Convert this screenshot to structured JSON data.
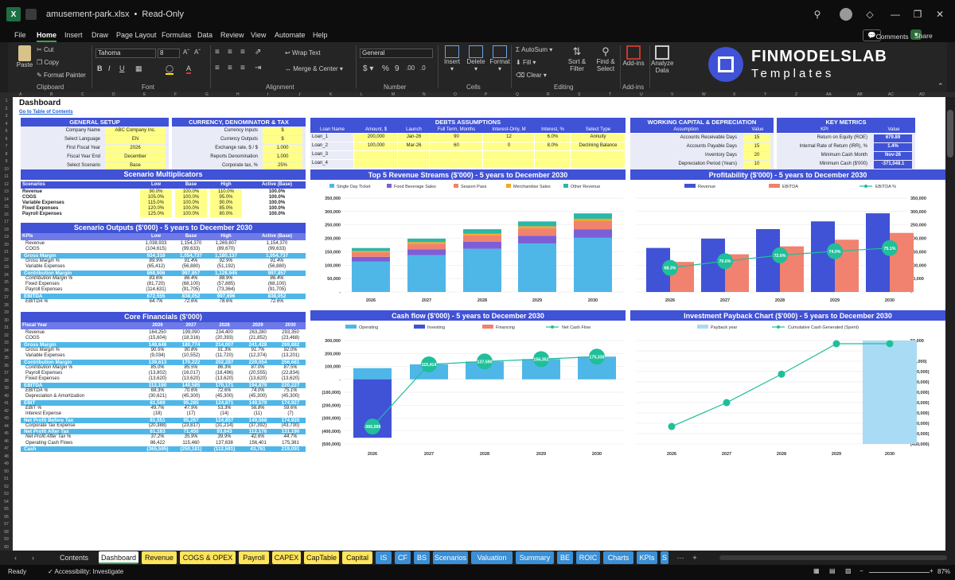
{
  "window": {
    "filename": "amusement-park.xlsx",
    "mode": "Read-Only"
  },
  "menu": [
    "File",
    "Home",
    "Insert",
    "Draw",
    "Page Layout",
    "Formulas",
    "Data",
    "Review",
    "View",
    "Automate",
    "Help"
  ],
  "comments_label": "Comments",
  "share_label": "Share",
  "ribbon": {
    "paste": "Paste",
    "cut": "Cut",
    "copy": "Copy",
    "format_painter": "Format Painter",
    "clipboard": "Clipboard",
    "font_name": "Tahoma",
    "font_size": "8",
    "font": "Font",
    "wrap_text": "Wrap Text",
    "merge_center": "Merge & Center",
    "alignment": "Alignment",
    "number_format": "General",
    "number": "Number",
    "insert": "Insert",
    "delete": "Delete",
    "format": "Format",
    "cells": "Cells",
    "autosum": "AutoSum",
    "fill": "Fill",
    "clear": "Clear",
    "sort_filter": "Sort & Filter",
    "find_select": "Find & Select",
    "editing": "Editing",
    "addins": "Add-ins",
    "addins_grp": "Add-ins",
    "analyze": "Analyze Data"
  },
  "brand": {
    "name": "FINMODELSLAB",
    "sub": "Templates"
  },
  "dash": {
    "title": "Dashboard",
    "link": "Go to Table of Contents"
  },
  "general": {
    "title": "GENERAL SETUP",
    "rows": [
      [
        "Company Name",
        "ABC Company Inc."
      ],
      [
        "Select Language",
        "EN"
      ],
      [
        "First Fiscal Year",
        "2026"
      ],
      [
        "Fiscal Year End",
        "December"
      ],
      [
        "Select Scenario",
        "Base"
      ]
    ]
  },
  "currency": {
    "title": "CURRENCY, DENOMINATOR & TAX",
    "rows": [
      [
        "Currency Inputs",
        "$"
      ],
      [
        "Currency Outputs",
        "$"
      ],
      [
        "Exchange rate, $ / $",
        "1.000"
      ],
      [
        "Reports Denomination",
        "1,000"
      ],
      [
        "Corporate tax, %",
        "25%"
      ]
    ]
  },
  "debts": {
    "title": "DEBTS ASSUMPTIONS",
    "cols": [
      "Loan Name",
      "Amount, $",
      "Launch",
      "Full Term, Months",
      "Interest-Only, M",
      "Interest, %",
      "Select Type"
    ],
    "rows": [
      [
        "Loan_1",
        "200,000",
        "Jan-26",
        "90",
        "12",
        "6.0%",
        "Annuity"
      ],
      [
        "Loan_2",
        "100,000",
        "Mar-26",
        "60",
        "0",
        "8.0%",
        "Declining Balance"
      ],
      [
        "Loan_3",
        "",
        "",
        "",
        "",
        "",
        ""
      ],
      [
        "Loan_4",
        "",
        "",
        "",
        "",
        "",
        ""
      ]
    ]
  },
  "wc": {
    "title": "WORKING CAPITAL & DEPRECIATION",
    "cols": [
      "Assumption",
      "Value"
    ],
    "rows": [
      [
        "Accounts Receivable Days",
        "15"
      ],
      [
        "Accounts Payable Days",
        "15"
      ],
      [
        "Inventory Days",
        "20"
      ],
      [
        "Depreciation Period (Years)",
        "10"
      ]
    ]
  },
  "kpi": {
    "title": "KEY METRICS",
    "cols": [
      "KPI",
      "Value"
    ],
    "rows": [
      [
        "Return on Equity (ROE)",
        "679.89"
      ],
      [
        "Internal Rate of Return (IRR), %",
        "1.4%"
      ],
      [
        "Minimum Cash Month",
        "Nov-26"
      ],
      [
        "Minimum Cash ($'000)",
        "-371,048.1"
      ]
    ]
  },
  "multipliers": {
    "title": "Scenario Multiplicators",
    "cols": [
      "Scenarios",
      "Low",
      "Base",
      "High",
      "Active (Base)"
    ],
    "rows": [
      [
        "Revenue",
        "90.0%",
        "100.0%",
        "110.0%",
        "100.0%"
      ],
      [
        "COGS",
        "105.0%",
        "100.0%",
        "95.0%",
        "100.0%"
      ],
      [
        "Variable Expenses",
        "115.0%",
        "100.0%",
        "90.0%",
        "100.0%"
      ],
      [
        "Fixed Expenses",
        "120.0%",
        "100.0%",
        "85.0%",
        "100.0%"
      ],
      [
        "Payroll Expenses",
        "125.0%",
        "100.0%",
        "80.0%",
        "100.0%"
      ]
    ]
  },
  "outputs": {
    "title": "Scenario Outputs ($'000) - 5 years to December 2030",
    "cols": [
      "KPIs",
      "Low",
      "Base",
      "High",
      "Active (Base)"
    ],
    "rows": [
      [
        "Revenue",
        "1,038,933",
        "1,154,370",
        "1,269,807",
        "1,154,370",
        "n"
      ],
      [
        "COGS",
        "(104,615)",
        "(99,633)",
        "(89,670)",
        "(99,633)",
        "n"
      ],
      [
        "Gross Margin",
        "934,318",
        "1,054,737",
        "1,180,137",
        "1,054,737",
        "b"
      ],
      [
        "Gross Margin %",
        "89.9%",
        "91.4%",
        "92.9%",
        "91.4%",
        "i"
      ],
      [
        "Variable Expenses",
        "(65,412)",
        "(56,880)",
        "(51,192)",
        "(56,880)",
        "n"
      ],
      [
        "Contribution Margin",
        "868,906",
        "997,857",
        "1,128,945",
        "997,857",
        "b"
      ],
      [
        "Contribution Margin %",
        "83.6%",
        "86.4%",
        "88.9%",
        "86.4%",
        "i"
      ],
      [
        "Fixed Expenses",
        "(81,720)",
        "(68,100)",
        "(57,885)",
        "(68,100)",
        "n"
      ],
      [
        "Payroll Expenses",
        "(114,631)",
        "(91,705)",
        "(73,364)",
        "(91,705)",
        "n"
      ],
      [
        "EBITDA",
        "672,555",
        "838,052",
        "997,696",
        "838,052",
        "b"
      ],
      [
        "EBITDA %",
        "64.7%",
        "72.6%",
        "78.6%",
        "72.6%",
        "i"
      ]
    ]
  },
  "core": {
    "title": "Core Financials ($'000)",
    "cols": [
      "Fiscal Year",
      "2026",
      "2027",
      "2028",
      "2029",
      "2030"
    ],
    "rows": [
      [
        "Revenue",
        "164,250",
        "199,090",
        "234,400",
        "263,280",
        "293,350",
        "n"
      ],
      [
        "COGS",
        "(15,604)",
        "(18,316)",
        "(20,393)",
        "(21,852)",
        "(23,468)",
        "n"
      ],
      [
        "Gross Margin",
        "148,646",
        "180,774",
        "214,007",
        "241,428",
        "269,882",
        "b"
      ],
      [
        "Gross Margin %",
        "90.5%",
        "90.8%",
        "91.3%",
        "91.7%",
        "92.0%",
        "i"
      ],
      [
        "Variable Expenses",
        "(9,034)",
        "(10,552)",
        "(11,720)",
        "(12,374)",
        "(13,201)",
        "n"
      ],
      [
        "Contribution Margin",
        "139,613",
        "170,222",
        "202,287",
        "229,054",
        "256,681",
        "b"
      ],
      [
        "Contribution Margin %",
        "85.0%",
        "85.5%",
        "86.3%",
        "87.0%",
        "87.5%",
        "i"
      ],
      [
        "Payroll Expenses",
        "(13,802)",
        "(16,017)",
        "(18,496)",
        "(20,555)",
        "(22,834)",
        "n"
      ],
      [
        "Fixed Expenses",
        "(13,620)",
        "(13,620)",
        "(13,620)",
        "(13,620)",
        "(13,620)",
        "n"
      ],
      [
        "EBITDA",
        "112,190",
        "140,585",
        "170,171",
        "194,879",
        "220,227",
        "b"
      ],
      [
        "EBITDA %",
        "68.3%",
        "70.6%",
        "72.6%",
        "74.0%",
        "75.1%",
        "i"
      ],
      [
        "Depreciation & Amortization",
        "(30,621)",
        "(45,300)",
        "(45,300)",
        "(45,300)",
        "(45,300)",
        "n"
      ],
      [
        "EBIT",
        "81,569",
        "95,285",
        "124,871",
        "149,579",
        "174,927",
        "b"
      ],
      [
        "EBIT %",
        "49.7%",
        "47.9%",
        "53.3%",
        "56.8%",
        "59.6%",
        "i"
      ],
      [
        "Interest Expense",
        "(18)",
        "(17)",
        "(14)",
        "(11)",
        "(7)",
        "n"
      ],
      [
        "Net Profit Before Tax",
        "81,551",
        "95,267",
        "124,857",
        "149,568",
        "174,920",
        "b"
      ],
      [
        "Corporate Tax Expense",
        "(20,388)",
        "(23,817)",
        "(31,214)",
        "(37,392)",
        "(43,730)",
        "n"
      ],
      [
        "Net Profit After Tax",
        "61,163",
        "71,450",
        "93,643",
        "112,176",
        "131,190",
        "b"
      ],
      [
        "Net Profit After Tax %",
        "37.2%",
        "35.9%",
        "39.9%",
        "42.6%",
        "44.7%",
        "i"
      ],
      [
        "Operating Cash Flows",
        "86,422",
        "115,460",
        "137,638",
        "156,401",
        "175,381",
        "n"
      ],
      [
        "Cash",
        "(365,595)",
        "(250,181)",
        "(112,591)",
        "43,761",
        "219,091",
        "b"
      ]
    ]
  },
  "colors": {
    "blue": "#4052d6",
    "light": "#4fb7e8",
    "yellow": "#ffff88",
    "teal": "#2ab7a9",
    "salmon": "#f0826f",
    "orange": "#f5a623",
    "purple": "#7c5fd6",
    "green": "#1fbf9a"
  },
  "chart_data": [
    {
      "type": "bar",
      "stacked": true,
      "title": "Top 5 Revenue Streams ($'000) - 5 years to December 2030",
      "categories": [
        "2026",
        "2027",
        "2028",
        "2029",
        "2030"
      ],
      "ylim": [
        0,
        350000
      ],
      "yticks": [
        "350,000",
        "300,000",
        "250,000",
        "200,000",
        "150,000",
        "100,000",
        "50,000",
        "-"
      ],
      "series": [
        {
          "name": "Single Day Ticket",
          "color": "#4fb7e8",
          "values": [
            113000,
            137000,
            161000,
            181000,
            202000
          ]
        },
        {
          "name": "Food Beverage Sales",
          "color": "#7c5fd6",
          "values": [
            18000,
            22000,
            26000,
            29000,
            32000
          ]
        },
        {
          "name": "Season Pass",
          "color": "#f0826f",
          "values": [
            17000,
            21000,
            24000,
            27000,
            30000
          ]
        },
        {
          "name": "Merchandise Sales",
          "color": "#f5a623",
          "values": [
            5000,
            6000,
            7000,
            8000,
            9000
          ]
        },
        {
          "name": "Other Revenue",
          "color": "#2ab7a9",
          "values": [
            11000,
            13000,
            16000,
            18000,
            20000
          ]
        }
      ]
    },
    {
      "type": "bar+line",
      "title": "Profitability ($'000) - 5 years to December 2030",
      "categories": [
        "2026",
        "2027",
        "2028",
        "2029",
        "2030"
      ],
      "ylim": [
        0,
        350000
      ],
      "yticks": [
        "350,000",
        "300,000",
        "250,000",
        "200,000",
        "150,000",
        "100,000",
        "50,000",
        "-"
      ],
      "series": [
        {
          "name": "Revenue",
          "color": "#4052d6",
          "values": [
            164250,
            199090,
            234400,
            263280,
            293350
          ]
        },
        {
          "name": "EBITDA",
          "color": "#f0826f",
          "values": [
            112190,
            140585,
            170171,
            194879,
            220227
          ]
        },
        {
          "name": "EBITDA %",
          "color": "#1fbf9a",
          "values": [
            68.3,
            70.6,
            72.6,
            74.0,
            75.1
          ],
          "labels": [
            "68.3%",
            "70.6%",
            "72.6%",
            "74.0%",
            "75.1%"
          ]
        }
      ]
    },
    {
      "type": "bar+line",
      "title": "Cash flow ($'000) - 5 years to December 2030",
      "categories": [
        "2026",
        "2027",
        "2028",
        "2029",
        "2030"
      ],
      "ylim": [
        -500000,
        300000
      ],
      "yticks": [
        "300,000",
        "200,000",
        "100,000",
        "-",
        "(100,000)",
        "(200,000)",
        "(300,000)",
        "(400,000)",
        "(500,000)"
      ],
      "series": [
        {
          "name": "Operating",
          "color": "#4fb7e8",
          "values": [
            86422,
            115460,
            137638,
            156401,
            175381
          ]
        },
        {
          "name": "Investing",
          "color": "#4052d6",
          "values": [
            -452000,
            0,
            0,
            0,
            0
          ]
        },
        {
          "name": "Financing",
          "color": "#f0826f",
          "values": [
            0,
            0,
            0,
            0,
            0
          ]
        },
        {
          "name": "Net Cash Flow",
          "color": "#1fbf9a",
          "values": [
            -365595,
            115414,
            137590,
            156352,
            175330
          ],
          "labels": [
            "-365,595",
            "115,414",
            "137,590",
            "156,352",
            "175,330"
          ]
        }
      ]
    },
    {
      "type": "bar+line",
      "title": "Investment Payback Chart ($'000) - 5 years to December 2030",
      "categories": [
        "2026",
        "2027",
        "2028",
        "2029",
        "2030"
      ],
      "ylim": [
        -450000,
        50000
      ],
      "yticks": [
        "50,000",
        "-",
        "(50,000)",
        "(100,000)",
        "(150,000)",
        "(200,000)",
        "(250,000)",
        "(300,000)",
        "(350,000)",
        "(400,000)",
        "(450,000)"
      ],
      "series": [
        {
          "name": "Payback year",
          "color": "#a9dbf5",
          "values": [
            0,
            0,
            0,
            0,
            1
          ]
        },
        {
          "name": "Cumulative Cash Generated (Spent)",
          "color": "#1fbf9a",
          "values": [
            -365595,
            -250181,
            -112591,
            43761,
            219091
          ]
        }
      ]
    }
  ],
  "sheets": [
    "Contents",
    "Dashboard",
    "Revenue",
    "COGS & OPEX",
    "Payroll",
    "CAPEX",
    "CapTable",
    "Capital",
    "IS",
    "CF",
    "BS",
    "Scenarios",
    "Valuation",
    "Summary",
    "BE",
    "ROIC",
    "Charts",
    "KPIs",
    "S"
  ],
  "status": {
    "ready": "Ready",
    "accessibility": "Accessibility: Investigate",
    "zoom": "87%"
  }
}
